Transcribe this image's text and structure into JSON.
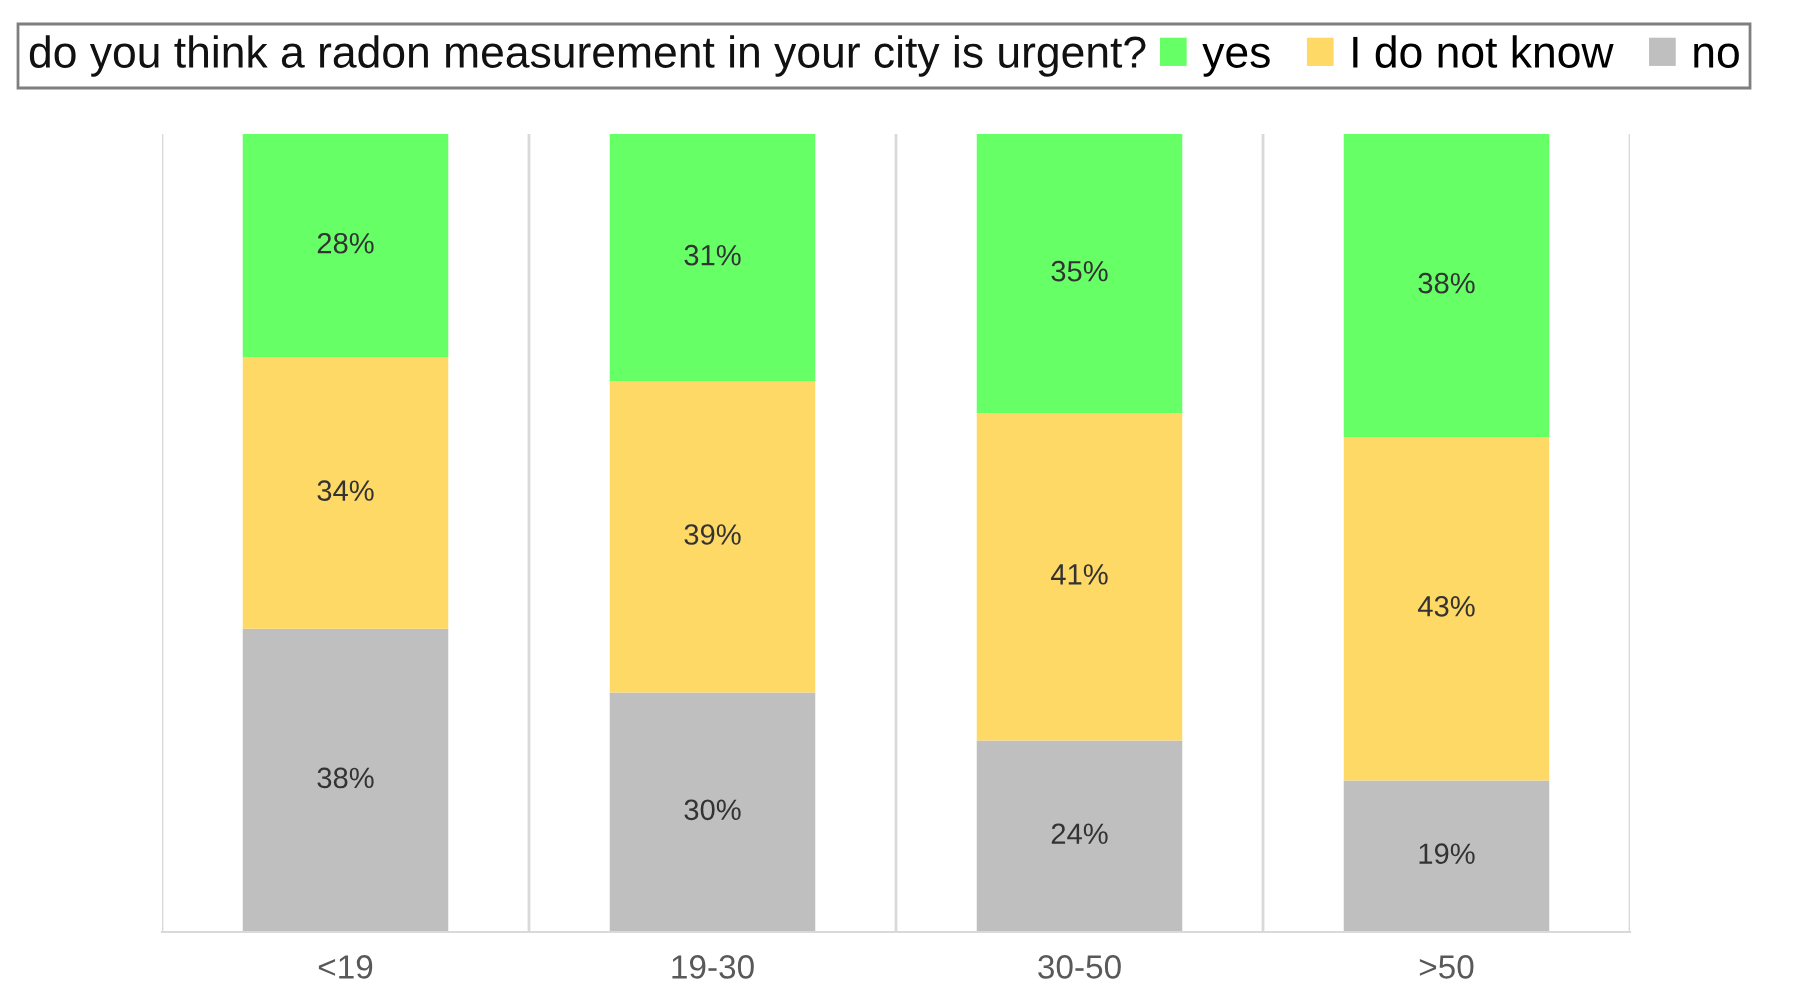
{
  "chart_data": {
    "type": "bar",
    "title": "do you think a radon measurement in your city is urgent?",
    "categories": [
      "<19",
      "19-30",
      "30-50",
      ">50"
    ],
    "stacked": true,
    "series": [
      {
        "name": "no",
        "color": "#bfbfbf",
        "values": [
          38,
          30,
          24,
          19
        ],
        "value_labels": [
          "38%",
          "30%",
          "24%",
          "19%"
        ]
      },
      {
        "name": "I do not know",
        "color": "#ffd966",
        "values": [
          34,
          39,
          41,
          43
        ],
        "value_labels": [
          "34%",
          "39%",
          "41%",
          "43%"
        ]
      },
      {
        "name": "yes",
        "color": "#66ff66",
        "values": [
          28,
          31,
          35,
          38
        ],
        "value_labels": [
          "28%",
          "31%",
          "35%",
          "38%"
        ]
      }
    ],
    "ylim": [
      0,
      100
    ],
    "tick_labels": "x",
    "grid": "x",
    "legend": "top"
  }
}
